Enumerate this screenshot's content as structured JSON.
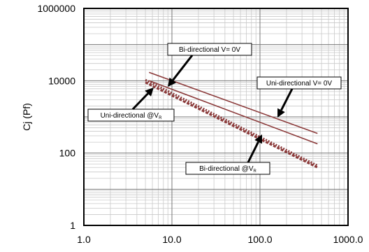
{
  "chart_data": {
    "type": "line",
    "title": "",
    "xlabel": "",
    "ylabel": "Cj (Pf)",
    "xscale": "log",
    "yscale": "log",
    "xlim": [
      1.0,
      1000.0
    ],
    "ylim": [
      1,
      1000000
    ],
    "grid": true,
    "x_tick_labels": [
      "1.0",
      "10.0",
      "100.0",
      "1000.0"
    ],
    "y_tick_labels": [
      "1",
      "100",
      "10000",
      "1000000"
    ],
    "series": [
      {
        "name": "Uni-directional V=0V",
        "style": "solid",
        "color": "#8b3a3a",
        "x": [
          5.5,
          450
        ],
        "y": [
          17000,
          350
        ]
      },
      {
        "name": "Bi-directional V=0V",
        "style": "solid",
        "color": "#8b3a3a",
        "x": [
          5.5,
          450
        ],
        "y": [
          10000,
          180
        ]
      },
      {
        "name": "Uni-directional @VR",
        "style": "dotted",
        "color": "#8b3a3a",
        "x": [
          5,
          450
        ],
        "y": [
          10500,
          45
        ]
      },
      {
        "name": "Bi-directional @VR",
        "style": "dashed",
        "color": "#8b3a3a",
        "x": [
          5,
          450
        ],
        "y": [
          9000,
          40
        ]
      }
    ],
    "annotations": [
      {
        "key": "bi_v0",
        "text": "Bi-directional V= 0V",
        "sub": ""
      },
      {
        "key": "uni_v0",
        "text": "Uni-directional V= 0V",
        "sub": ""
      },
      {
        "key": "uni_vr",
        "text": "Uni-directional @V",
        "sub": "R"
      },
      {
        "key": "bi_vr",
        "text": "Bi-directional @V",
        "sub": "R"
      }
    ]
  }
}
